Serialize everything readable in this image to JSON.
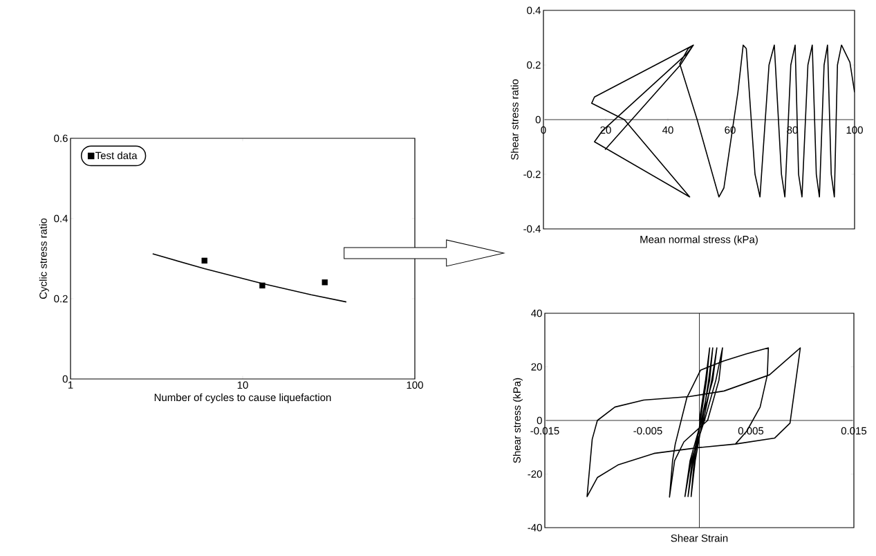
{
  "chart_data": [
    {
      "type": "scatter",
      "xlabel": "Number of cycles to cause liquefaction",
      "ylabel": "Cyclic stress ratio",
      "log": "x",
      "xlim": [
        1,
        100
      ],
      "xticks": [
        1,
        10,
        100
      ],
      "ylim": [
        0,
        0.6
      ],
      "yticks": [
        0,
        0.2,
        0.4,
        0.6
      ],
      "legend": "top left",
      "series": [
        {
          "name": "Test data",
          "type": "scatter",
          "marker": "square",
          "color": "#000000",
          "x": [
            6,
            13,
            30
          ],
          "values": [
            0.295,
            0.233,
            0.241
          ]
        },
        {
          "type": "line",
          "color": "#000000",
          "x": [
            3,
            6,
            13,
            25,
            40
          ],
          "values": [
            0.312,
            0.275,
            0.238,
            0.21,
            0.192
          ]
        }
      ]
    },
    {
      "type": "line",
      "xlabel": "Mean normal stress (kPa)",
      "ylabel": "Shear stress ratio",
      "xlim": [
        0,
        100
      ],
      "xticks": [
        0,
        20,
        40,
        60,
        80,
        100
      ],
      "ylim": [
        -0.4,
        0.4
      ],
      "yticks": [
        -0.4,
        -0.2,
        0,
        0.2,
        0.4
      ],
      "series": [
        {
          "color": "#000000",
          "x": [
            100,
            98.5,
            95.8,
            94.5,
            93.5,
            92.5,
            91.3,
            90.2,
            88.7,
            87.7,
            86.4,
            85,
            83.1,
            82,
            80.9,
            79.5,
            77.6,
            76.5,
            74.2,
            72.5,
            69.6,
            68,
            65.2,
            64.2,
            62.5,
            58,
            56.4,
            49.4,
            43.8,
            46.5,
            48.2,
            16.4,
            15.5,
            26,
            47,
            16.4,
            19,
            46,
            48.2,
            44,
            19.8
          ],
          "values": [
            0.1,
            0.21,
            0.273,
            0.2,
            -0.283,
            -0.2,
            0.273,
            0.2,
            -0.283,
            -0.2,
            0.273,
            0.2,
            -0.283,
            -0.2,
            0.273,
            0.2,
            -0.283,
            -0.2,
            0.273,
            0.2,
            -0.283,
            -0.2,
            0.26,
            0.273,
            0.1,
            -0.25,
            -0.283,
            0,
            0.205,
            0.26,
            0.273,
            0.083,
            0.06,
            0,
            -0.283,
            -0.081,
            -0.04,
            0.24,
            0.273,
            0.2,
            -0.11
          ]
        }
      ]
    },
    {
      "type": "line",
      "xlabel": "Shear Strain",
      "ylabel": "Shear stress (kPa)",
      "xlim": [
        -0.015,
        0.015
      ],
      "xticks": [
        -0.015,
        -0.005,
        0.005,
        0.015
      ],
      "ylim": [
        -40,
        40
      ],
      "yticks": [
        -40,
        -20,
        0,
        20,
        40
      ],
      "ref_lines": [
        {
          "axis": "x",
          "value": 0
        }
      ],
      "series": [
        {
          "color": "#000000",
          "x": [
            0,
            0.0006,
            0.001,
            0.0007,
            0.0001,
            -0.0005,
            -0.0008,
            -0.0004,
            0.0003,
            0.0009,
            0.0013,
            0.001,
            0.0002,
            -0.0007,
            -0.0011,
            -0.0006,
            0.0004,
            0.0012,
            0.0017,
            0.0013,
            0.0002,
            -0.0009,
            -0.0014,
            -0.0008,
            0.0005,
            0.0016,
            0.00225,
            0.0019,
            0.0008,
            -0.0015,
            -0.0024,
            -0.0029,
            -0.0026,
            -0.00234,
            -0.00122,
            0.00012,
            0.00236,
            0.0045,
            0.0067,
            0.0066,
            0.0059,
            0.0046,
            0.0035,
            0.0,
            -0.0044,
            -0.0079,
            -0.0099,
            -0.0109,
            -0.0104,
            -0.0099,
            -0.0082,
            -0.0054,
            -0.001,
            0.0024,
            0.0068,
            0.0098,
            0.0096,
            0.0088,
            0.0073,
            0.0035
          ],
          "values": [
            0,
            15,
            27.1,
            15,
            0,
            -15,
            -28.4,
            -15,
            0,
            15,
            27.1,
            15,
            0,
            -15,
            -28.4,
            -15,
            0,
            15,
            27.1,
            15,
            0,
            -15,
            -28.4,
            -15,
            0,
            15,
            27.1,
            15,
            0,
            -8,
            -15,
            -28.6,
            -15,
            -8.8,
            8.4,
            18.8,
            22.2,
            24.8,
            27.1,
            17,
            5,
            -4,
            -8.8,
            -10.1,
            -12.3,
            -16.6,
            -21.3,
            -28.4,
            -7,
            0,
            5,
            7.6,
            8.9,
            11,
            17,
            27.1,
            21.4,
            -1,
            -6.6,
            -8.8
          ]
        }
      ]
    }
  ]
}
